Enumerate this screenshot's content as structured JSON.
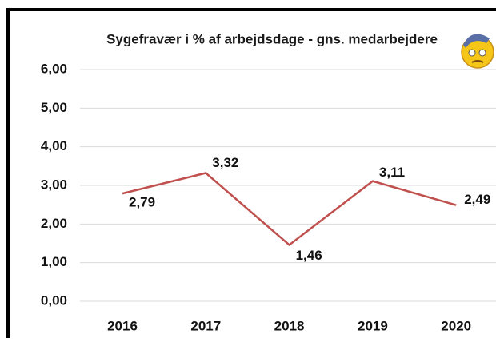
{
  "chart_data": {
    "type": "line",
    "title": "Sygefravær i % af arbejdsdage - gns. medarbejdere",
    "categories": [
      "2016",
      "2017",
      "2018",
      "2019",
      "2020"
    ],
    "series": [
      {
        "color": "#c0504d",
        "values": [
          2.79,
          3.32,
          1.46,
          3.11,
          2.49
        ],
        "value_labels": [
          "2,79",
          "3,32",
          "1,46",
          "3,11",
          "2,49"
        ]
      }
    ],
    "ylim": [
      0,
      6
    ],
    "yticks": [
      {
        "value": 0,
        "label": "0,00"
      },
      {
        "value": 1,
        "label": "1,00"
      },
      {
        "value": 2,
        "label": "2,00"
      },
      {
        "value": 3,
        "label": "3,00"
      },
      {
        "value": 4,
        "label": "4,00"
      },
      {
        "value": 5,
        "label": "5,00"
      },
      {
        "value": 6,
        "label": "6,00"
      }
    ],
    "grid": true
  }
}
